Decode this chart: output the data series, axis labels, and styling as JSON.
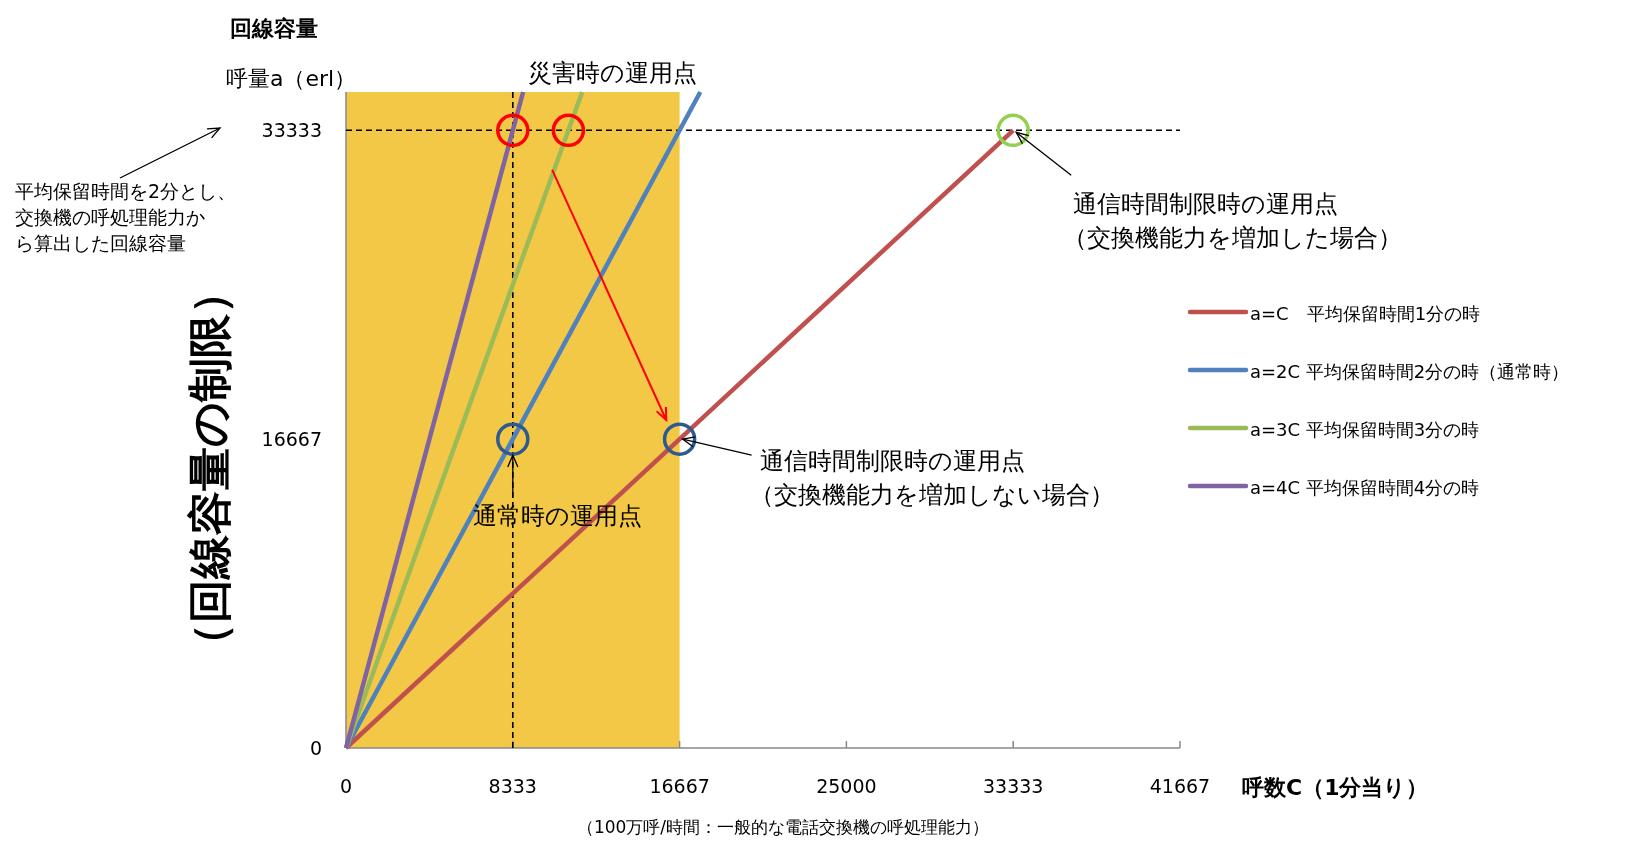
{
  "chart_data": {
    "type": "line",
    "ylabel": "呼量a（erl）",
    "xlabel": "呼数C（1分当り）",
    "xlim": [
      0,
      41667
    ],
    "xticks": [
      0,
      8333,
      16667,
      25000,
      33333,
      41667
    ],
    "ylim": [
      0,
      35400
    ],
    "yticks": [
      0,
      16667,
      33333
    ],
    "grid": false,
    "legend": "right",
    "line_style": "solid",
    "series": [
      {
        "name": "a=C　平均保留時間1分の時",
        "color": "#c0504d",
        "x": [
          0,
          33333
        ],
        "values": [
          0,
          33333
        ]
      },
      {
        "name": "a=2C 平均保留時間2分の時（通常時）",
        "color": "#4f81bd",
        "x": [
          0,
          17700
        ],
        "values": [
          0,
          35400
        ]
      },
      {
        "name": "a=3C 平均保留時間3分の時",
        "color": "#9bbb59",
        "x": [
          0,
          11800
        ],
        "values": [
          0,
          35400
        ]
      },
      {
        "name": "a=4C 平均保留時間4分の時",
        "color": "#8064a2",
        "x": [
          0,
          8850
        ],
        "values": [
          0,
          35400
        ]
      },
      {
        "type": "scatter",
        "marker": "circle",
        "color": "#ff0000",
        "x": [
          8333,
          11111
        ],
        "values": [
          33333,
          33333
        ]
      },
      {
        "type": "scatter",
        "marker": "circle",
        "color": "#2e5a8f",
        "x": [
          8333,
          16667
        ],
        "values": [
          16667,
          16667
        ]
      },
      {
        "type": "scatter",
        "marker": "circle",
        "color": "#92d050",
        "x": [
          33333
        ],
        "values": [
          33333
        ]
      }
    ],
    "bands": [
      {
        "axis": "x",
        "from": 0,
        "to": 16667,
        "color": "#f2c232"
      }
    ],
    "ref_lines": [
      {
        "axis": "y",
        "value": 33333,
        "line_style": "dashed",
        "color": "#000000"
      },
      {
        "axis": "x",
        "value": 8333,
        "line_style": "dashed",
        "color": "#000000"
      }
    ],
    "annotations": [
      "回線容量",
      "（回線容量の制限）",
      "平均保留時間を2分とし、",
      "交換機の呼処理能力か",
      "ら算出した回線容量",
      {
        "text": "災害時の運用点",
        "x": 11111,
        "y": 33333
      },
      {
        "text": "通信時間制限時の運用点",
        "x": 33333,
        "y": 33333
      },
      "（交換機能力を増加した場合）",
      {
        "text": "通常時の運用点",
        "x": 8333,
        "y": 16667
      },
      {
        "text": "通信時間制限時の運用点",
        "x": 16667,
        "y": 16667
      },
      "（交換機能力を増加しない場合）",
      "（100万呼/時間：一般的な電話交換機の呼処理能力）"
    ]
  }
}
